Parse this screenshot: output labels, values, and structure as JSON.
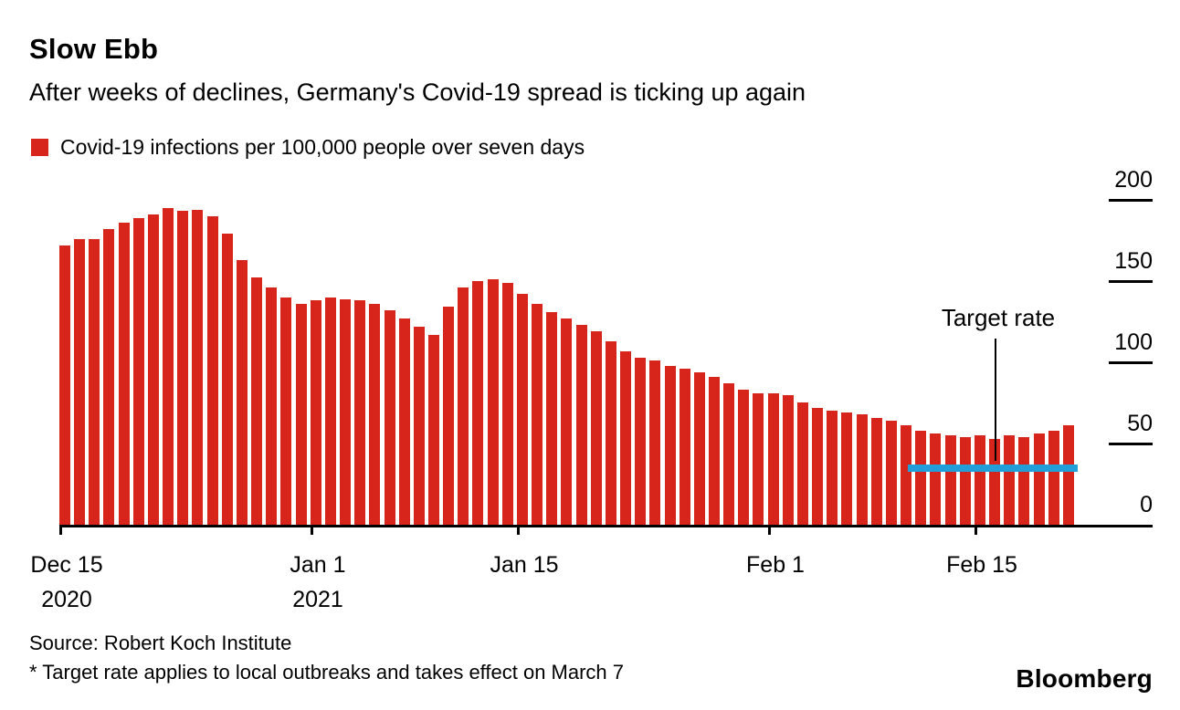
{
  "header": {
    "title": "Slow Ebb",
    "subtitle": "After weeks of declines, Germany's Covid-19 spread is ticking up again"
  },
  "legend": {
    "label": "Covid-19 infections per 100,000 people over seven days",
    "color": "#d8251c"
  },
  "chart_data": {
    "type": "bar",
    "title": "Slow Ebb",
    "subtitle": "After weeks of declines, Germany's Covid-19 spread is ticking up again",
    "series_name": "Covid-19 infections per 100,000 people over seven days",
    "bar_color": "#d8251c",
    "ylim": [
      0,
      200
    ],
    "y_ticks": [
      0,
      50,
      100,
      150,
      200
    ],
    "x_range_note": "Daily values from Dec 15 2020 to Feb 21 2021",
    "values": [
      172,
      176,
      176,
      182,
      186,
      189,
      191,
      195,
      193,
      194,
      190,
      179,
      163,
      152,
      146,
      140,
      136,
      138,
      140,
      139,
      138,
      136,
      132,
      127,
      122,
      117,
      134,
      146,
      150,
      151,
      149,
      142,
      136,
      131,
      127,
      123,
      119,
      113,
      107,
      103,
      101,
      98,
      96,
      94,
      91,
      87,
      83,
      81,
      81,
      80,
      75,
      72,
      70,
      69,
      68,
      66,
      64,
      61,
      58,
      56,
      55,
      54,
      55,
      53,
      55,
      54,
      56,
      58,
      61
    ],
    "x_tick_labels": [
      {
        "label": "Dec 15",
        "sub": "2020",
        "index": 0
      },
      {
        "label": "Jan 1",
        "sub": "2021",
        "index": 17
      },
      {
        "label": "Jan 15",
        "sub": "",
        "index": 31
      },
      {
        "label": "Feb 1",
        "sub": "",
        "index": 48
      },
      {
        "label": "Feb 15",
        "sub": "",
        "index": 62
      }
    ],
    "target_line": {
      "value": 35,
      "label": "Target rate",
      "color": "#229fd8",
      "start_index": 57.5
    },
    "legend_position": "top-left",
    "grid": false,
    "y_axis_side": "right"
  },
  "annotation": {
    "target_rate_label": "Target rate"
  },
  "footer": {
    "source": "Source: Robert Koch Institute",
    "footnote": "* Target rate applies to local outbreaks and takes effect on March 7",
    "brand": "Bloomberg"
  }
}
